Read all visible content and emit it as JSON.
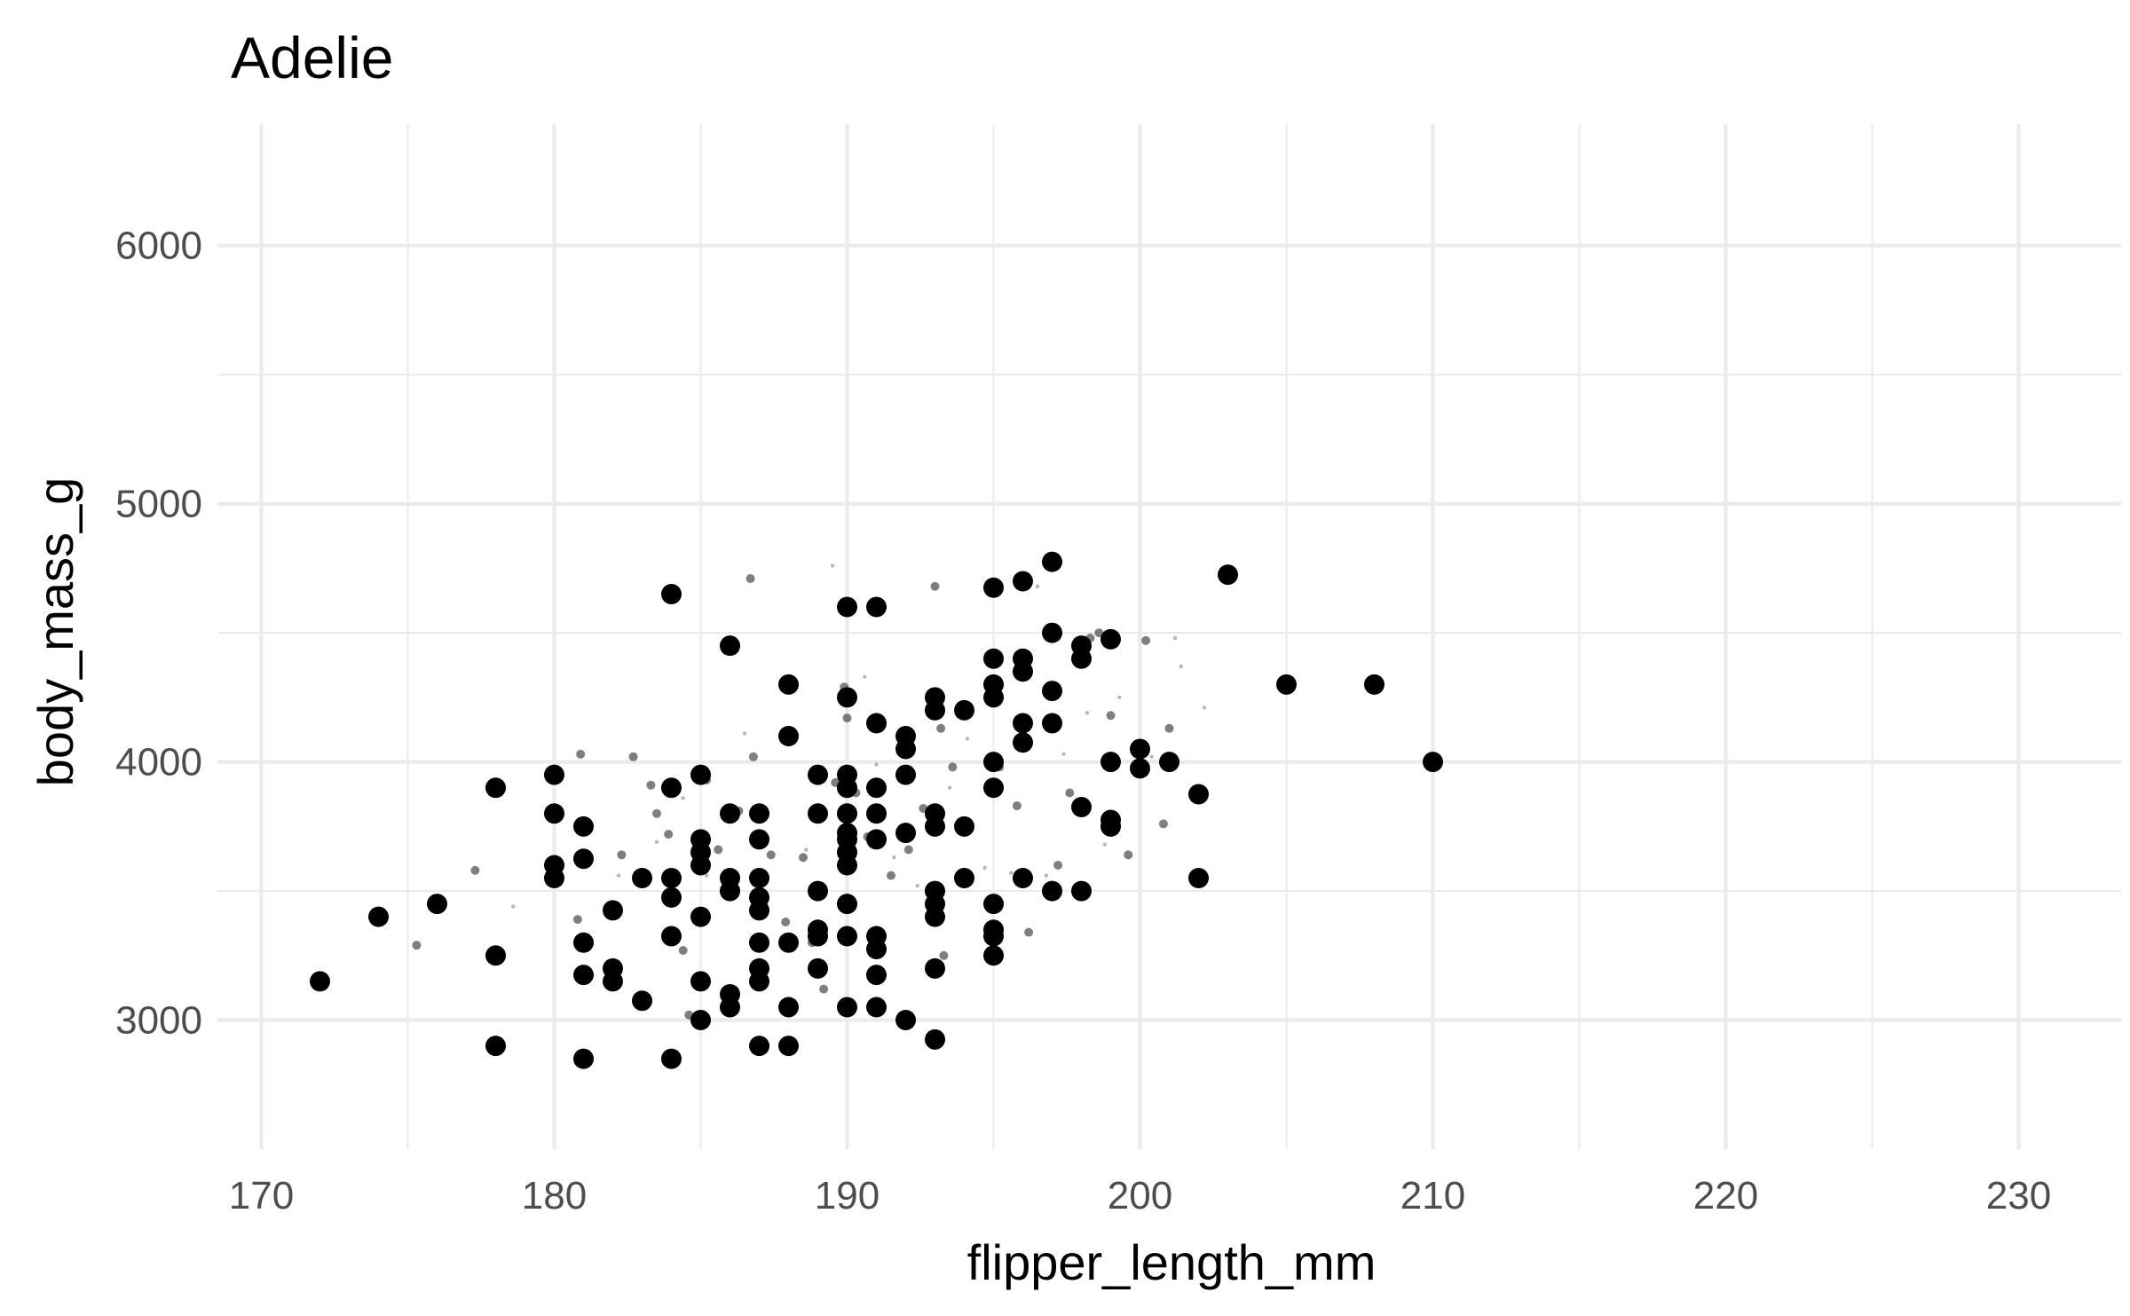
{
  "chart_data": {
    "type": "scatter",
    "title": "Adelie",
    "xlabel": "flipper_length_mm",
    "ylabel": "body_mass_g",
    "xlim": [
      168.5,
      233.5
    ],
    "ylim": [
      2500,
      6470
    ],
    "x_ticks": [
      170,
      180,
      190,
      200,
      210,
      220,
      230
    ],
    "x_tick_labels": [
      "170",
      "180",
      "190",
      "200",
      "210",
      "220",
      "230"
    ],
    "y_ticks": [
      3000,
      4000,
      5000,
      6000
    ],
    "y_tick_labels": [
      "3000",
      "4000",
      "5000",
      "6000"
    ],
    "grid": true,
    "legend": "none",
    "colors": {
      "point": "#000000",
      "grid": "#ebebeb",
      "tick_text": "#4d4d4d",
      "background": "#ffffff"
    },
    "series": [
      {
        "marker": "large-solid",
        "points": [
          [
            172,
            3150
          ],
          [
            174,
            3400
          ],
          [
            176,
            3450
          ],
          [
            178,
            3900
          ],
          [
            178,
            3250
          ],
          [
            178,
            2900
          ],
          [
            180,
            3950
          ],
          [
            180,
            3800
          ],
          [
            180,
            3600
          ],
          [
            180,
            3550
          ],
          [
            181,
            3750
          ],
          [
            181,
            3625
          ],
          [
            181,
            3300
          ],
          [
            181,
            3175
          ],
          [
            181,
            2850
          ],
          [
            182,
            3425
          ],
          [
            182,
            3200
          ],
          [
            182,
            3150
          ],
          [
            183,
            3550
          ],
          [
            183,
            3075
          ],
          [
            184,
            4650
          ],
          [
            184,
            3900
          ],
          [
            184,
            3550
          ],
          [
            184,
            3475
          ],
          [
            184,
            3325
          ],
          [
            184,
            2850
          ],
          [
            185,
            3950
          ],
          [
            185,
            3700
          ],
          [
            185,
            3650
          ],
          [
            185,
            3600
          ],
          [
            185,
            3400
          ],
          [
            185,
            3150
          ],
          [
            185,
            3000
          ],
          [
            186,
            4450
          ],
          [
            186,
            3800
          ],
          [
            186,
            3550
          ],
          [
            186,
            3500
          ],
          [
            186,
            3100
          ],
          [
            186,
            3050
          ],
          [
            187,
            3800
          ],
          [
            187,
            3700
          ],
          [
            187,
            3550
          ],
          [
            187,
            3475
          ],
          [
            187,
            3425
          ],
          [
            187,
            3300
          ],
          [
            187,
            3200
          ],
          [
            187,
            3150
          ],
          [
            187,
            2900
          ],
          [
            188,
            4300
          ],
          [
            188,
            4100
          ],
          [
            188,
            3300
          ],
          [
            188,
            3050
          ],
          [
            188,
            2900
          ],
          [
            189,
            3950
          ],
          [
            189,
            3800
          ],
          [
            189,
            3500
          ],
          [
            189,
            3350
          ],
          [
            189,
            3325
          ],
          [
            189,
            3200
          ],
          [
            190,
            4600
          ],
          [
            190,
            4250
          ],
          [
            190,
            3950
          ],
          [
            190,
            3900
          ],
          [
            190,
            3800
          ],
          [
            190,
            3725
          ],
          [
            190,
            3700
          ],
          [
            190,
            3650
          ],
          [
            190,
            3600
          ],
          [
            190,
            3450
          ],
          [
            190,
            3325
          ],
          [
            190,
            3050
          ],
          [
            191,
            4600
          ],
          [
            191,
            4150
          ],
          [
            191,
            3900
          ],
          [
            191,
            3800
          ],
          [
            191,
            3700
          ],
          [
            191,
            3325
          ],
          [
            191,
            3275
          ],
          [
            191,
            3175
          ],
          [
            191,
            3050
          ],
          [
            192,
            4100
          ],
          [
            192,
            4050
          ],
          [
            192,
            3950
          ],
          [
            192,
            3725
          ],
          [
            192,
            3000
          ],
          [
            193,
            4250
          ],
          [
            193,
            4200
          ],
          [
            193,
            3800
          ],
          [
            193,
            3750
          ],
          [
            193,
            3500
          ],
          [
            193,
            3450
          ],
          [
            193,
            3400
          ],
          [
            193,
            3200
          ],
          [
            193,
            2925
          ],
          [
            194,
            4200
          ],
          [
            194,
            3750
          ],
          [
            194,
            3550
          ],
          [
            195,
            4675
          ],
          [
            195,
            4400
          ],
          [
            195,
            4300
          ],
          [
            195,
            4250
          ],
          [
            195,
            4000
          ],
          [
            195,
            3900
          ],
          [
            195,
            3450
          ],
          [
            195,
            3350
          ],
          [
            195,
            3325
          ],
          [
            195,
            3250
          ],
          [
            196,
            4700
          ],
          [
            196,
            4400
          ],
          [
            196,
            4350
          ],
          [
            196,
            4150
          ],
          [
            196,
            4075
          ],
          [
            196,
            3550
          ],
          [
            197,
            4775
          ],
          [
            197,
            4500
          ],
          [
            197,
            4275
          ],
          [
            197,
            4150
          ],
          [
            197,
            3500
          ],
          [
            198,
            4450
          ],
          [
            198,
            4400
          ],
          [
            198,
            3825
          ],
          [
            198,
            3500
          ],
          [
            199,
            4475
          ],
          [
            199,
            4000
          ],
          [
            199,
            3775
          ],
          [
            199,
            3750
          ],
          [
            200,
            4050
          ],
          [
            200,
            3975
          ],
          [
            201,
            4000
          ],
          [
            202,
            3875
          ],
          [
            202,
            3550
          ],
          [
            203,
            4725
          ],
          [
            205,
            4300
          ],
          [
            208,
            4300
          ],
          [
            210,
            4000
          ]
        ]
      },
      {
        "marker": "small-translucent",
        "points": [
          [
            175.3,
            3290
          ],
          [
            177.3,
            3580
          ],
          [
            180.8,
            3390
          ],
          [
            180.9,
            4030
          ],
          [
            182.3,
            3640
          ],
          [
            182.7,
            4020
          ],
          [
            183.3,
            3910
          ],
          [
            183.5,
            3800
          ],
          [
            183.9,
            3720
          ],
          [
            184.4,
            3270
          ],
          [
            184.6,
            3020
          ],
          [
            185.2,
            3930
          ],
          [
            185.6,
            3660
          ],
          [
            186.3,
            3810
          ],
          [
            186.7,
            4710
          ],
          [
            186.8,
            4020
          ],
          [
            187.4,
            3640
          ],
          [
            187.9,
            3380
          ],
          [
            188.5,
            3630
          ],
          [
            188.8,
            3300
          ],
          [
            189.2,
            3120
          ],
          [
            189.6,
            3920
          ],
          [
            189.9,
            4290
          ],
          [
            190.0,
            4170
          ],
          [
            190.3,
            3880
          ],
          [
            190.7,
            3710
          ],
          [
            191.5,
            3560
          ],
          [
            192.1,
            3660
          ],
          [
            192.6,
            3820
          ],
          [
            193.0,
            4680
          ],
          [
            193.2,
            4130
          ],
          [
            193.3,
            3250
          ],
          [
            193.6,
            3980
          ],
          [
            194.0,
            4210
          ],
          [
            195.2,
            3980
          ],
          [
            195.8,
            3830
          ],
          [
            196.2,
            3340
          ],
          [
            197.2,
            3600
          ],
          [
            197.6,
            3880
          ],
          [
            198.3,
            4480
          ],
          [
            198.6,
            4500
          ],
          [
            199.0,
            4180
          ],
          [
            199.6,
            3640
          ],
          [
            200.2,
            4470
          ],
          [
            200.8,
            3760
          ],
          [
            201.0,
            4130
          ]
        ]
      },
      {
        "marker": "tiny-faint",
        "points": [
          [
            178.6,
            3440
          ],
          [
            182.2,
            3560
          ],
          [
            183.5,
            3690
          ],
          [
            184.4,
            3860
          ],
          [
            185.2,
            3560
          ],
          [
            186.5,
            4110
          ],
          [
            187.2,
            3530
          ],
          [
            188.6,
            3660
          ],
          [
            189.5,
            4760
          ],
          [
            190.6,
            4330
          ],
          [
            191.0,
            3990
          ],
          [
            191.6,
            3630
          ],
          [
            192.4,
            3520
          ],
          [
            193.5,
            3900
          ],
          [
            194.1,
            4090
          ],
          [
            194.7,
            3590
          ],
          [
            195.6,
            3570
          ],
          [
            196.5,
            4680
          ],
          [
            196.8,
            3560
          ],
          [
            197.4,
            4030
          ],
          [
            198.2,
            4190
          ],
          [
            198.8,
            3680
          ],
          [
            199.3,
            4250
          ],
          [
            200.4,
            4020
          ],
          [
            201.2,
            4480
          ],
          [
            201.4,
            4370
          ],
          [
            202.2,
            4210
          ]
        ]
      }
    ]
  }
}
